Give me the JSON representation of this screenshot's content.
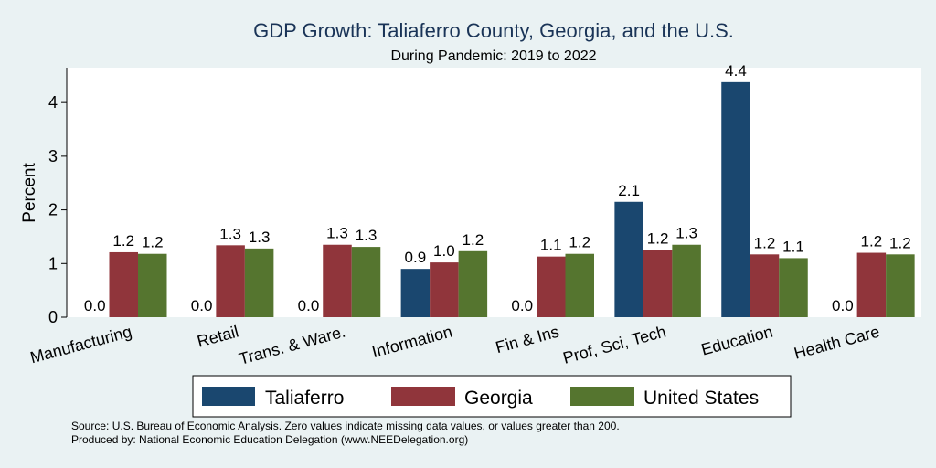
{
  "colors": {
    "background": "#eaf2f3",
    "plot_background": "#ffffff",
    "title": "#1a3457",
    "taliaferro": "#1a476f",
    "georgia": "#90353b",
    "united_states": "#55752f"
  },
  "footer": {
    "source": "Source: U.S. Bureau of Economic Analysis. Zero values indicate missing data values, or values greater than 200.",
    "produced_by": "Produced by: National Economic Education Delegation (www.NEEDelegation.org)"
  },
  "chart_data": {
    "type": "bar",
    "title": "GDP Growth: Taliaferro County, Georgia, and the U.S.",
    "subtitle": "During Pandemic: 2019 to 2022",
    "xlabel": "",
    "ylabel": "Percent",
    "ylim": [
      0,
      4.65
    ],
    "yticks": [
      0,
      1,
      2,
      3,
      4
    ],
    "categories": [
      "Manufacturing",
      "Retail",
      "Trans. & Ware.",
      "Information",
      "Fin & Ins",
      "Prof, Sci, Tech",
      "Education",
      "Health Care"
    ],
    "series": [
      {
        "name": "Taliaferro",
        "color": "#1a476f",
        "values": [
          0.0,
          0.0,
          0.0,
          0.9,
          0.0,
          2.15,
          4.38,
          0.0
        ],
        "labels": [
          "0.0",
          "0.0",
          "0.0",
          "0.9",
          "0.0",
          "2.1",
          "4.4",
          "0.0"
        ]
      },
      {
        "name": "Georgia",
        "color": "#90353b",
        "values": [
          1.21,
          1.34,
          1.35,
          1.02,
          1.13,
          1.25,
          1.17,
          1.2
        ],
        "labels": [
          "1.2",
          "1.3",
          "1.3",
          "1.0",
          "1.1",
          "1.2",
          "1.2",
          "1.2"
        ]
      },
      {
        "name": "United States",
        "color": "#55752f",
        "values": [
          1.18,
          1.28,
          1.31,
          1.23,
          1.18,
          1.35,
          1.1,
          1.17
        ],
        "labels": [
          "1.2",
          "1.3",
          "1.3",
          "1.2",
          "1.2",
          "1.3",
          "1.1",
          "1.2"
        ]
      }
    ],
    "legend_position": "bottom",
    "grid": false
  }
}
